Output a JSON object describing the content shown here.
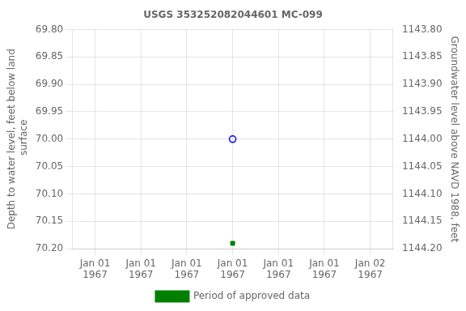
{
  "chart_data": {
    "type": "scatter",
    "title": "USGS 353252082044601 MC-099",
    "y_label": "Depth to water level, feet below land\n surface",
    "y2_label": "Groundwater level above NAVD 1988, feet",
    "categories": [
      "Jan 01\n1967",
      "Jan 01\n1967",
      "Jan 01\n1967",
      "Jan 01\n1967",
      "Jan 01\n1967",
      "Jan 01\n1967",
      "Jan 02\n1967"
    ],
    "series": [
      {
        "color": "blue",
        "marker": "circle-open",
        "values": [
          null,
          null,
          null,
          70.0,
          null,
          null,
          null
        ]
      },
      {
        "name": "Period of approved data",
        "color": "#008000",
        "marker": "square",
        "values": [
          null,
          null,
          null,
          70.19,
          null,
          null,
          null
        ]
      }
    ],
    "ylim": [
      70.2,
      69.8
    ],
    "yticks": [
      {
        "value": 69.8,
        "label": "69.80"
      },
      {
        "value": 69.85,
        "label": "69.85"
      },
      {
        "value": 69.9,
        "label": "69.90"
      },
      {
        "value": 69.95,
        "label": "69.95"
      },
      {
        "value": 70.0,
        "label": "70.00"
      },
      {
        "value": 70.05,
        "label": "70.05"
      },
      {
        "value": 70.1,
        "label": "70.10"
      },
      {
        "value": 70.15,
        "label": "70.15"
      },
      {
        "value": 70.2,
        "label": "70.20"
      }
    ],
    "y2lim": [
      1144.2,
      1143.8
    ],
    "y2ticks": [
      {
        "value": 1144.2,
        "label": "1144.20"
      },
      {
        "value": 1144.15,
        "label": "1144.15"
      },
      {
        "value": 1144.1,
        "label": "1144.10"
      },
      {
        "value": 1144.05,
        "label": "1144.05"
      },
      {
        "value": 1144.0,
        "label": "1144.00"
      },
      {
        "value": 1143.95,
        "label": "1143.95"
      },
      {
        "value": 1143.9,
        "label": "1143.90"
      },
      {
        "value": 1143.85,
        "label": "1143.85"
      },
      {
        "value": 1143.8,
        "label": "1143.80"
      }
    ],
    "grid": true,
    "legend": "bottom"
  }
}
